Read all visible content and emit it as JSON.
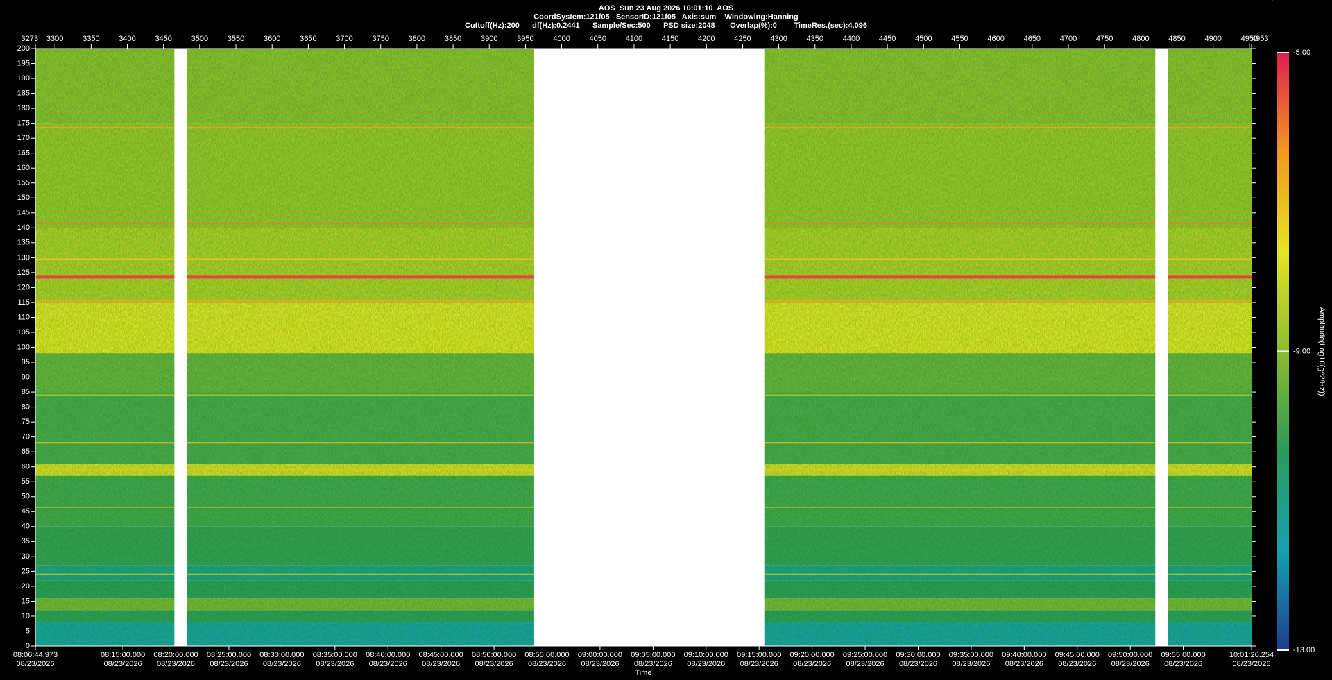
{
  "chart_data": {
    "type": "spectrogram",
    "title_lines": [
      "AOS  Sun 23 Aug 2026 10:01:10  AOS",
      "CoordSystem:121f05   SensorID:121f05   Axis:sum    Windowing:Hanning",
      "Cuttoff(Hz):200      df(Hz):0.2441      Sample/Sec:500      PSD size:2048       Overlap(%):0        TimeRes.(sec):4.096"
    ],
    "x_label": "Time",
    "colorbar_label": "Amplitude(Log10(g^2/Hz))",
    "xlim": [
      3273,
      4953
    ],
    "xticks": [
      3273,
      3300,
      3350,
      3400,
      3450,
      3500,
      3550,
      3600,
      3650,
      3700,
      3750,
      3800,
      3850,
      3900,
      3950,
      4000,
      4050,
      4100,
      4150,
      4200,
      4250,
      4300,
      4350,
      4400,
      4450,
      4500,
      4550,
      4600,
      4650,
      4700,
      4750,
      4800,
      4850,
      4900,
      4950,
      4953
    ],
    "time_ticks": [
      {
        "time": "08:06:44.973",
        "date": "08/23/2026"
      },
      {
        "time": "08:15:00.000",
        "date": "08/23/2026"
      },
      {
        "time": "08:20:00.000",
        "date": "08/23/2026"
      },
      {
        "time": "08:25:00.000",
        "date": "08/23/2026"
      },
      {
        "time": "08:30:00.000",
        "date": "08/23/2026"
      },
      {
        "time": "08:35:00.000",
        "date": "08/23/2026"
      },
      {
        "time": "08:40:00.000",
        "date": "08/23/2026"
      },
      {
        "time": "08:45:00.000",
        "date": "08/23/2026"
      },
      {
        "time": "08:50:00.000",
        "date": "08/23/2026"
      },
      {
        "time": "08:55:00.000",
        "date": "08/23/2026"
      },
      {
        "time": "09:00:00.000",
        "date": "08/23/2026"
      },
      {
        "time": "09:05:00.000",
        "date": "08/23/2026"
      },
      {
        "time": "09:10:00.000",
        "date": "08/23/2026"
      },
      {
        "time": "09:15:00.000",
        "date": "08/23/2026"
      },
      {
        "time": "09:20:00.000",
        "date": "08/23/2026"
      },
      {
        "time": "09:25:00.000",
        "date": "08/23/2026"
      },
      {
        "time": "09:30:00.000",
        "date": "08/23/2026"
      },
      {
        "time": "09:35:00.000",
        "date": "08/23/2026"
      },
      {
        "time": "09:40:00.000",
        "date": "08/23/2026"
      },
      {
        "time": "09:45:00.000",
        "date": "08/23/2026"
      },
      {
        "time": "09:50:00.000",
        "date": "08/23/2026"
      },
      {
        "time": "09:55:00.000",
        "date": "08/23/2026"
      },
      {
        "time": "10:01:26.254",
        "date": "08/23/2026"
      }
    ],
    "ylim": [
      0,
      200
    ],
    "yticks": [
      0,
      5,
      10,
      15,
      20,
      25,
      30,
      35,
      40,
      45,
      50,
      55,
      60,
      65,
      70,
      75,
      80,
      85,
      90,
      95,
      100,
      105,
      110,
      115,
      120,
      125,
      130,
      135,
      140,
      145,
      150,
      155,
      160,
      165,
      170,
      175,
      180,
      185,
      190,
      195,
      200
    ],
    "clim": [
      -13,
      -5
    ],
    "cticks": [
      {
        "value": -5,
        "label": "-5.00"
      },
      {
        "value": -9,
        "label": "-9.00"
      },
      {
        "value": -13,
        "label": "-13.00"
      }
    ],
    "colormap": [
      "#1c3f8e",
      "#16a0b0",
      "#2a9a5a",
      "#8cbc2e",
      "#e4e424",
      "#f29a1e",
      "#e01c50"
    ],
    "segments": [
      [
        3273,
        3465
      ],
      [
        3482,
        3962
      ],
      [
        4280,
        4820
      ],
      [
        4838,
        4953
      ]
    ],
    "bands": [
      {
        "from": 0,
        "to": 8,
        "level": -11.4
      },
      {
        "from": 8,
        "to": 12,
        "level": -10.3
      },
      {
        "from": 12,
        "to": 16,
        "level": -9.3
      },
      {
        "from": 16,
        "to": 22,
        "level": -10.3
      },
      {
        "from": 22,
        "to": 27,
        "level": -11
      },
      {
        "from": 27,
        "to": 40,
        "level": -10.2
      },
      {
        "from": 40,
        "to": 57,
        "level": -10
      },
      {
        "from": 57,
        "to": 61,
        "level": -8
      },
      {
        "from": 61,
        "to": 85,
        "level": -9.9
      },
      {
        "from": 85,
        "to": 98,
        "level": -9.5
      },
      {
        "from": 98,
        "to": 115,
        "level": -7.8
      },
      {
        "from": 115,
        "to": 140,
        "level": -8.5
      },
      {
        "from": 140,
        "to": 175,
        "level": -8.8
      },
      {
        "from": 175,
        "to": 200,
        "level": -9
      }
    ],
    "lines": [
      {
        "freq": 24,
        "level": -8.8
      },
      {
        "freq": 46.5,
        "level": -9
      },
      {
        "freq": 59,
        "level": -7
      },
      {
        "freq": 68,
        "level": -7
      },
      {
        "freq": 84,
        "level": -8.8
      },
      {
        "freq": 115.5,
        "level": -6.5
      },
      {
        "freq": 123.5,
        "level": -5.4
      },
      {
        "freq": 129.5,
        "level": -7
      },
      {
        "freq": 141.5,
        "level": -6
      },
      {
        "freq": 173.5,
        "level": -6.5
      }
    ]
  }
}
